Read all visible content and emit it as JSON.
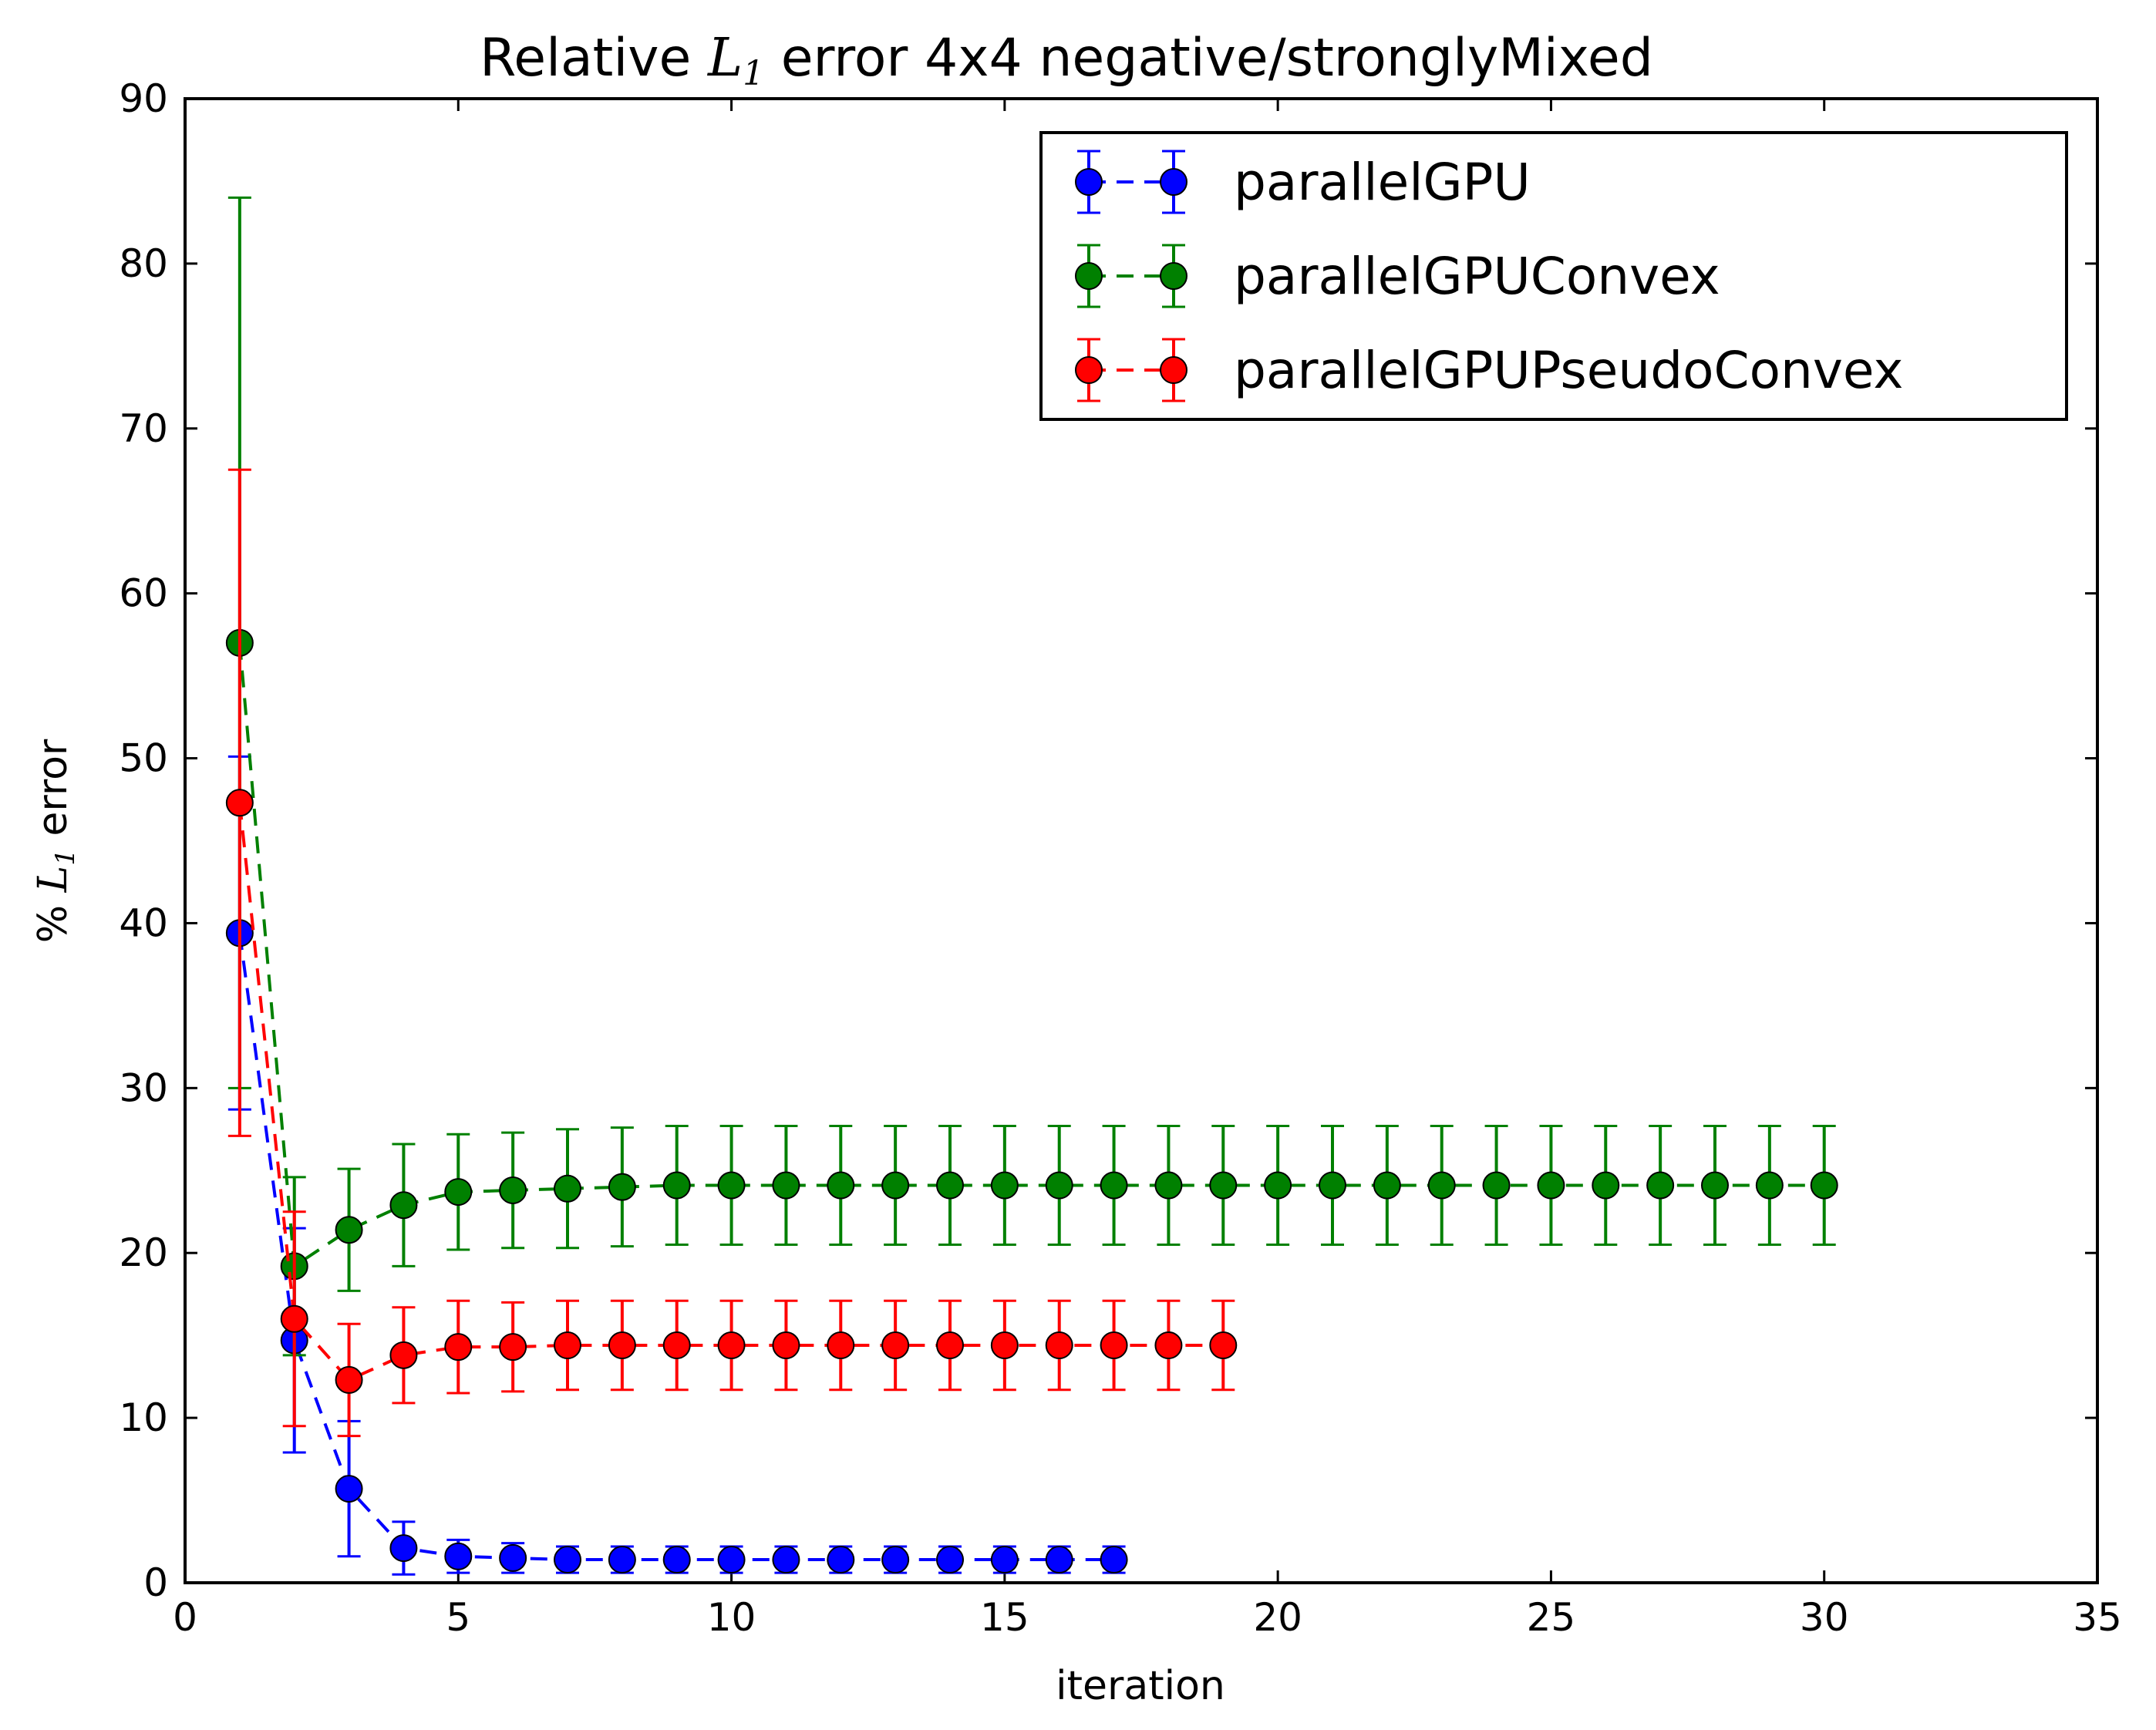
{
  "chart_data": {
    "type": "line",
    "title": {
      "before": "Relative ",
      "math": "L",
      "sub": "1",
      "after": " error 4x4 negative/stronglyMixed"
    },
    "xlabel": "iteration",
    "ylabel": {
      "before": "% ",
      "math": "L",
      "sub": "1",
      "after": " error"
    },
    "xlim": [
      0,
      35
    ],
    "ylim": [
      0,
      90
    ],
    "xticks": [
      0,
      5,
      10,
      15,
      20,
      25,
      30,
      35
    ],
    "yticks": [
      0,
      10,
      20,
      30,
      40,
      50,
      60,
      70,
      80,
      90
    ],
    "grid": false,
    "legend_position": "top-right",
    "series": [
      {
        "name": "parallelGPU",
        "color": "#0000ff",
        "x": [
          1,
          2,
          3,
          4,
          5,
          6,
          7,
          8,
          9,
          10,
          11,
          12,
          13,
          14,
          15,
          16,
          17
        ],
        "y": [
          39.4,
          14.7,
          5.7,
          2.1,
          1.6,
          1.5,
          1.4,
          1.4,
          1.4,
          1.4,
          1.4,
          1.4,
          1.4,
          1.4,
          1.4,
          1.4,
          1.4
        ],
        "err": [
          10.7,
          6.8,
          4.1,
          1.6,
          1.0,
          0.9,
          0.8,
          0.8,
          0.8,
          0.8,
          0.8,
          0.8,
          0.8,
          0.8,
          0.8,
          0.8,
          0.8
        ]
      },
      {
        "name": "parallelGPUConvex",
        "color": "#008000",
        "x": [
          1,
          2,
          3,
          4,
          5,
          6,
          7,
          8,
          9,
          10,
          11,
          12,
          13,
          14,
          15,
          16,
          17,
          18,
          19,
          20,
          21,
          22,
          23,
          24,
          25,
          26,
          27,
          28,
          29,
          30
        ],
        "y": [
          57.0,
          19.2,
          21.4,
          22.9,
          23.7,
          23.8,
          23.9,
          24.0,
          24.1,
          24.1,
          24.1,
          24.1,
          24.1,
          24.1,
          24.1,
          24.1,
          24.1,
          24.1,
          24.1,
          24.1,
          24.1,
          24.1,
          24.1,
          24.1,
          24.1,
          24.1,
          24.1,
          24.1,
          24.1,
          24.1
        ],
        "err": [
          27.0,
          5.4,
          3.7,
          3.7,
          3.5,
          3.5,
          3.6,
          3.6,
          3.6,
          3.6,
          3.6,
          3.6,
          3.6,
          3.6,
          3.6,
          3.6,
          3.6,
          3.6,
          3.6,
          3.6,
          3.6,
          3.6,
          3.6,
          3.6,
          3.6,
          3.6,
          3.6,
          3.6,
          3.6,
          3.6
        ]
      },
      {
        "name": "parallelGPUPseudoConvex",
        "color": "#ff0000",
        "x": [
          1,
          2,
          3,
          4,
          5,
          6,
          7,
          8,
          9,
          10,
          11,
          12,
          13,
          14,
          15,
          16,
          17,
          18,
          19
        ],
        "y": [
          47.3,
          16.0,
          12.3,
          13.8,
          14.3,
          14.3,
          14.4,
          14.4,
          14.4,
          14.4,
          14.4,
          14.4,
          14.4,
          14.4,
          14.4,
          14.4,
          14.4,
          14.4,
          14.4
        ],
        "err": [
          20.2,
          6.5,
          3.4,
          2.9,
          2.8,
          2.7,
          2.7,
          2.7,
          2.7,
          2.7,
          2.7,
          2.7,
          2.7,
          2.7,
          2.7,
          2.7,
          2.7,
          2.7,
          2.7
        ]
      }
    ]
  }
}
